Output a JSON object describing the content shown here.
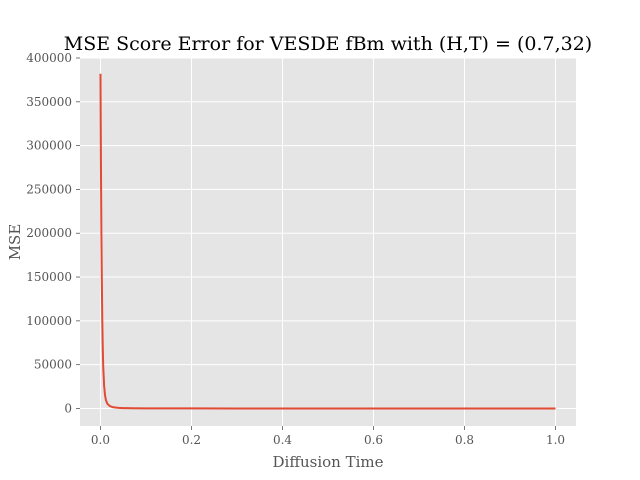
{
  "chart_data": {
    "type": "line",
    "title": "MSE Score Error for VESDE fBm with (H,T) = (0.7,32)",
    "xlabel": "Diffusion Time",
    "ylabel": "MSE",
    "xlim": [
      -0.045,
      1.045
    ],
    "ylim": [
      -20000,
      400000
    ],
    "x_ticks": [
      "0.0",
      "0.2",
      "0.4",
      "0.6",
      "0.8",
      "1.0"
    ],
    "y_ticks": [
      "0",
      "50000",
      "100000",
      "150000",
      "200000",
      "250000",
      "300000",
      "350000",
      "400000"
    ],
    "grid": true,
    "background": "#e5e5e5",
    "grid_color": "#ffffff",
    "series": [
      {
        "color": "#e24a33",
        "x": [
          0.0,
          0.001,
          0.002,
          0.003,
          0.004,
          0.005,
          0.006,
          0.008,
          0.01,
          0.012,
          0.015,
          0.02,
          0.025,
          0.03,
          0.04,
          0.05,
          0.07,
          0.1,
          0.15,
          0.2,
          0.3,
          0.4,
          0.5,
          0.6,
          0.7,
          0.8,
          0.9,
          1.0
        ],
        "y": [
          382000,
          280000,
          200000,
          145000,
          100000,
          70000,
          48000,
          26000,
          15000,
          9500,
          5500,
          3000,
          1800,
          1200,
          700,
          450,
          260,
          150,
          80,
          50,
          25,
          15,
          10,
          8,
          6,
          5,
          4,
          3
        ]
      }
    ]
  }
}
